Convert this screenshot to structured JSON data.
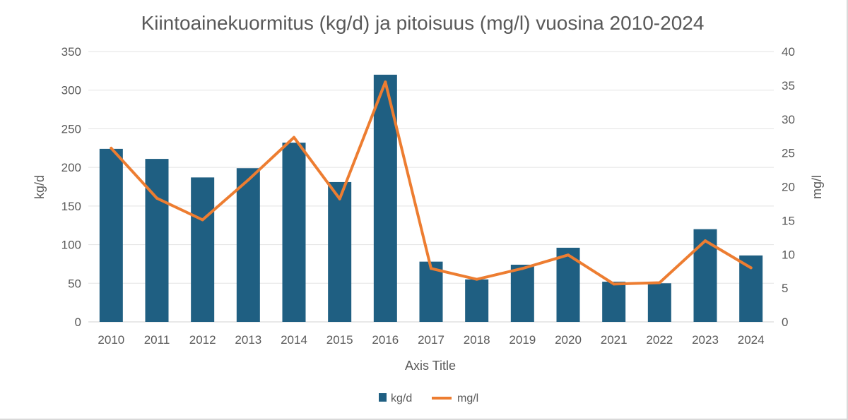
{
  "chart_data": {
    "type": "bar",
    "title": "Kiintoainekuormitus (kg/d) ja pitoisuus (mg/l) vuosina 2010-2024",
    "xlabel": "Axis Title",
    "ylabel": "kg/d",
    "y2label": "mg/l",
    "ylim": [
      0,
      350
    ],
    "y2lim": [
      0,
      40
    ],
    "yticks": [
      "0",
      "50",
      "100",
      "150",
      "200",
      "250",
      "300",
      "350"
    ],
    "y2ticks": [
      "0",
      "5",
      "10",
      "15",
      "20",
      "25",
      "30",
      "35",
      "40"
    ],
    "categories": [
      "2010",
      "2011",
      "2012",
      "2013",
      "2014",
      "2015",
      "2016",
      "2017",
      "2018",
      "2019",
      "2020",
      "2021",
      "2022",
      "2023",
      "2024"
    ],
    "grid": true,
    "legend_position": "bottom",
    "series": [
      {
        "name": "kg/d",
        "type": "bar",
        "axis": "left",
        "color": "#1f5f82",
        "values": [
          224,
          211,
          187,
          199,
          232,
          181,
          320,
          78,
          55,
          74,
          96,
          52,
          50,
          120,
          86
        ]
      },
      {
        "name": "mg/l",
        "type": "line",
        "axis": "right",
        "color": "#ed7d31",
        "values": [
          25.7,
          18.3,
          15.1,
          21.0,
          27.3,
          18.2,
          35.5,
          7.9,
          6.3,
          7.9,
          9.9,
          5.6,
          5.8,
          12.0,
          8.0
        ]
      }
    ]
  }
}
